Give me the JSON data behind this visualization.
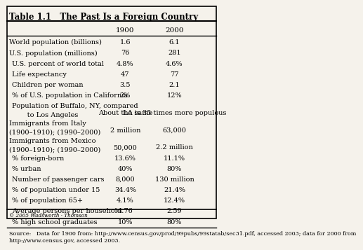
{
  "title": "Table 1.1   The Past Is a Foreign Country",
  "col_headers": [
    "",
    "1900",
    "2000"
  ],
  "rows": [
    [
      "World population (billions)",
      "1.6",
      "6.1"
    ],
    [
      "U.S. population (millions)",
      "76",
      "281"
    ],
    [
      "   U.S. percent of world total",
      "4.8%",
      "4.6%"
    ],
    [
      "   Life expectancy",
      "47",
      "77"
    ],
    [
      "   Children per woman",
      "3.5",
      "2.1"
    ],
    [
      "   % of U.S. population in California",
      "2%",
      "12%"
    ],
    [
      "   Population of Buffalo, NY, compared\n      to Los Angeles",
      "About the same",
      "LA is 35 times more populous"
    ],
    [
      "Immigrants from Italy\n(1900–1910); (1990–2000)",
      "2 million",
      "63,000"
    ],
    [
      "Immigrants from Mexico\n(1900–1910); (1990–2000)",
      "50,000",
      "2.2 million"
    ],
    [
      "   % foreign-born",
      "13.6%",
      "11.1%"
    ],
    [
      "   % urban",
      "40%",
      "80%"
    ],
    [
      "   Number of passenger cars",
      "8,000",
      "130 million"
    ],
    [
      "   % of population under 15",
      "34.4%",
      "21.4%"
    ],
    [
      "   % of population 65+",
      "4.1%",
      "12.4%"
    ],
    [
      "   Average persons per household",
      "4.76",
      "2.59"
    ],
    [
      "   % high school graduates",
      "10%",
      "80%"
    ]
  ],
  "source_text": "Source:   Data for 1900 from: http://www.census.gov/prod/99pubs/99statab/sec31.pdf, accessed 2003; data for 2000 from\nhttp://www.census.gov, accessed 2003.",
  "copyright_text": "© 2005 Wadsworth · Thomson",
  "bg_color": "#f5f2eb",
  "header_fontsize": 7.5,
  "body_fontsize": 7.0,
  "title_fontsize": 8.5
}
